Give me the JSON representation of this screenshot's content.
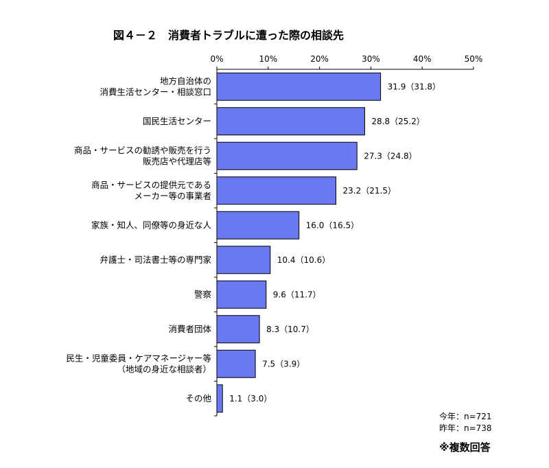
{
  "title": "図４－２　消費者トラブルに遭った際の相談先",
  "legend": {
    "current": "今年：n=721",
    "previous": "昨年：n=738"
  },
  "footnote": "※複数回答",
  "colors": {
    "bar": "#6a79f0",
    "bar_border": "#000000"
  },
  "chart_data": {
    "type": "bar",
    "orientation": "horizontal",
    "categories": [
      [
        "地方自治体の",
        "消費生活センター・相談窓口"
      ],
      [
        "国民生活センター"
      ],
      [
        "商品・サービスの勧誘や販売を行う",
        "販売店や代理店等"
      ],
      [
        "商品・サービスの提供元である",
        "メーカー等の事業者"
      ],
      [
        "家族・知人、同僚等の身近な人"
      ],
      [
        "弁護士・司法書士等の専門家"
      ],
      [
        "警察"
      ],
      [
        "消費者団体"
      ],
      [
        "民生・児童委員・ケアマネージャー等",
        "（地域の身近な相談者）"
      ],
      [
        "その他"
      ]
    ],
    "series": [
      {
        "name": "今年",
        "values": [
          31.9,
          28.8,
          27.3,
          23.2,
          16.0,
          10.4,
          9.6,
          8.3,
          7.5,
          1.1
        ]
      },
      {
        "name": "昨年",
        "values": [
          31.8,
          25.2,
          24.8,
          21.5,
          16.5,
          10.6,
          11.7,
          10.7,
          3.9,
          3.0
        ]
      }
    ],
    "value_labels": [
      "31.9（31.8）",
      "28.8（25.2）",
      "27.3（24.8）",
      "23.2（21.5）",
      "16.0（16.5）",
      "10.4（10.6）",
      "9.6（11.7）",
      "8.3（10.7）",
      "7.5（3.9）",
      "1.1（3.0）"
    ],
    "xlim": [
      0,
      50
    ],
    "xticks": [
      "0%",
      "10%",
      "20%",
      "30%",
      "40%",
      "50%"
    ],
    "grid": false
  }
}
